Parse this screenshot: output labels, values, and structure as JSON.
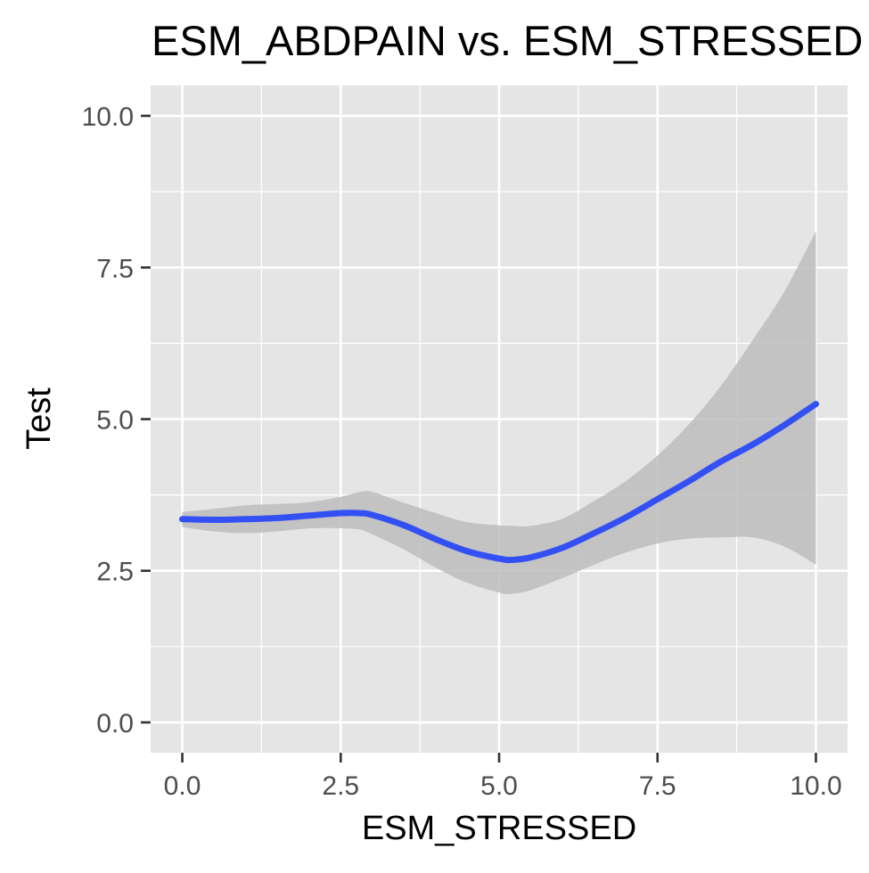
{
  "chart_data": {
    "type": "line",
    "title": "ESM_ABDPAIN vs. ESM_STRESSED",
    "xlabel": "ESM_STRESSED",
    "ylabel": "Test",
    "xlim": [
      -0.5,
      10.5
    ],
    "ylim": [
      -0.5,
      10.5
    ],
    "x_ticks": [
      0.0,
      2.5,
      5.0,
      7.5,
      10.0
    ],
    "x_tick_labels": [
      "0.0",
      "2.5",
      "5.0",
      "7.5",
      "10.0"
    ],
    "y_ticks": [
      0.0,
      2.5,
      5.0,
      7.5,
      10.0
    ],
    "y_tick_labels": [
      "0.0",
      "2.5",
      "5.0",
      "7.5",
      "10.0"
    ],
    "grid": true,
    "colors": {
      "panel": "#e5e5e5",
      "grid": "#ffffff",
      "line": "#3350f5",
      "band": "#bdbdbd"
    },
    "series": [
      {
        "values_x": [
          0.0,
          0.5,
          1.0,
          1.5,
          2.0,
          2.5,
          2.8,
          3.0,
          3.5,
          4.0,
          4.5,
          5.0,
          5.2,
          5.5,
          6.0,
          6.5,
          7.0,
          7.5,
          8.0,
          8.5,
          9.0,
          9.5,
          10.0
        ],
        "y": [
          3.35,
          3.34,
          3.35,
          3.37,
          3.41,
          3.45,
          3.45,
          3.42,
          3.25,
          3.02,
          2.82,
          2.7,
          2.68,
          2.72,
          2.88,
          3.12,
          3.38,
          3.68,
          3.98,
          4.3,
          4.58,
          4.9,
          5.25
        ],
        "lower": [
          3.22,
          3.15,
          3.12,
          3.15,
          3.2,
          3.2,
          3.18,
          3.1,
          2.85,
          2.55,
          2.3,
          2.14,
          2.12,
          2.18,
          2.38,
          2.6,
          2.8,
          2.95,
          3.03,
          3.05,
          3.05,
          2.9,
          2.6
        ],
        "upper": [
          3.47,
          3.52,
          3.58,
          3.6,
          3.63,
          3.72,
          3.8,
          3.8,
          3.62,
          3.45,
          3.3,
          3.25,
          3.24,
          3.24,
          3.36,
          3.65,
          3.98,
          4.4,
          4.92,
          5.55,
          6.3,
          7.1,
          8.1
        ]
      }
    ]
  }
}
